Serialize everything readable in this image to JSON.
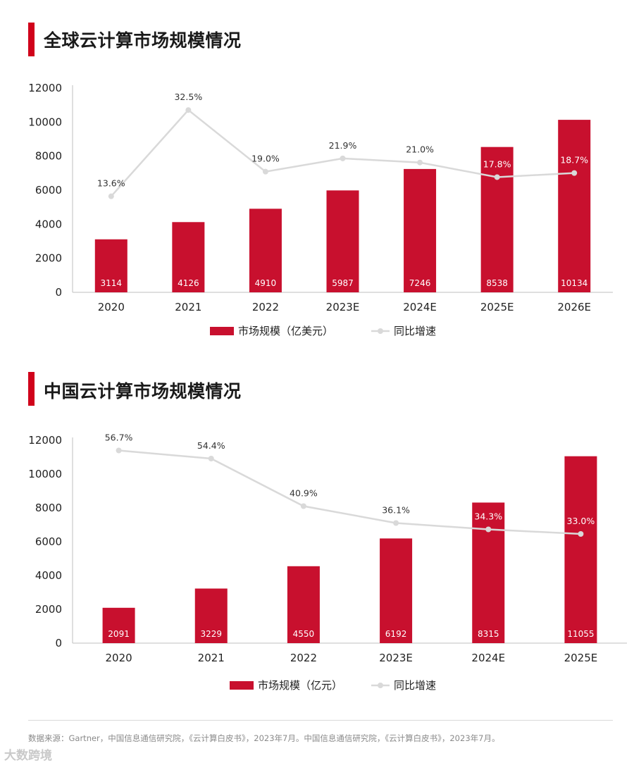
{
  "charts": [
    {
      "heading": "全球云计算市场规模情况",
      "chart_data": {
        "type": "bar",
        "categories": [
          "2020",
          "2021",
          "2022",
          "2023E",
          "2024E",
          "2025E",
          "2026E"
        ],
        "series": [
          {
            "name": "市场规模（亿美元）",
            "type": "bar",
            "values": [
              3114,
              4126,
              4910,
              5987,
              7246,
              8538,
              10134
            ],
            "color": "#c8102e"
          },
          {
            "name": "同比增速",
            "type": "line",
            "values": [
              13.6,
              32.5,
              19.0,
              21.9,
              21.0,
              17.8,
              18.7
            ],
            "labels": [
              "13.6%",
              "32.5%",
              "19.0%",
              "21.9%",
              "21.0%",
              "17.8%",
              "18.7%"
            ],
            "color": "#d9d9d9"
          }
        ],
        "ylim": [
          0,
          12000
        ],
        "yticks": [
          0,
          2000,
          4000,
          6000,
          8000,
          10000,
          12000
        ],
        "title": "全球云计算市场规模情况",
        "legend": "bottom-center"
      }
    },
    {
      "heading": "中国云计算市场规模情况",
      "chart_data": {
        "type": "bar",
        "categories": [
          "2020",
          "2021",
          "2022",
          "2023E",
          "2024E",
          "2025E"
        ],
        "series": [
          {
            "name": "市场规模（亿元）",
            "type": "bar",
            "values": [
              2091,
              3229,
              4550,
              6192,
              8315,
              11055
            ],
            "color": "#c8102e"
          },
          {
            "name": "同比增速",
            "type": "line",
            "values": [
              56.7,
              54.4,
              40.9,
              36.1,
              34.3,
              33.0
            ],
            "labels": [
              "56.7%",
              "54.4%",
              "40.9%",
              "36.1%",
              "34.3%",
              "33.0%"
            ],
            "color": "#d9d9d9"
          }
        ],
        "ylim": [
          0,
          12000
        ],
        "yticks": [
          0,
          2000,
          4000,
          6000,
          8000,
          10000,
          12000
        ],
        "title": "中国云计算市场规模情况",
        "legend": "bottom-center"
      }
    }
  ],
  "source": "数据来源：Gartner，中国信息通信研究院，《云计算白皮书》，2023年7月。中国信息通信研究院，《云计算白皮书》，2023年7月。",
  "watermark": "大数跨境"
}
